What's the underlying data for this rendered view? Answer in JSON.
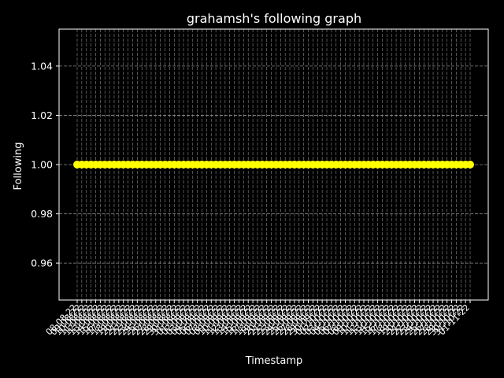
{
  "chart_data": {
    "type": "line",
    "title": "grahamsh's following graph",
    "xlabel": "Timestamp",
    "ylabel": "Following",
    "ylim": [
      0.945,
      1.055
    ],
    "yticks": [
      0.96,
      0.98,
      1.0,
      1.02,
      1.04
    ],
    "ytick_labels": [
      "0.96",
      "0.98",
      "1.00",
      "1.02",
      "1.04"
    ],
    "grid": true,
    "series": [
      {
        "name": "Following",
        "color": "#ffff00",
        "values": [
          1,
          1,
          1,
          1,
          1,
          1,
          1,
          1,
          1,
          1,
          1,
          1,
          1,
          1,
          1,
          1,
          1,
          1,
          1,
          1,
          1,
          1,
          1,
          1,
          1,
          1,
          1,
          1,
          1,
          1,
          1,
          1,
          1,
          1,
          1,
          1,
          1,
          1,
          1,
          1,
          1,
          1,
          1,
          1,
          1,
          1,
          1,
          1,
          1,
          1,
          1,
          1,
          1,
          1,
          1,
          1,
          1,
          1,
          1,
          1,
          1,
          1,
          1,
          1,
          1,
          1,
          1,
          1,
          1,
          1,
          1,
          1,
          1,
          1,
          1,
          1,
          1,
          1,
          1,
          1,
          1,
          1,
          1,
          1,
          1,
          1
        ]
      }
    ],
    "categories": [
      "08-08-22",
      "09-08-22",
      "10-08-22",
      "11-08-22",
      "12-08-22",
      "13-08-22",
      "14-08-22",
      "15-08-22",
      "16-08-22",
      "17-08-22",
      "18-08-22",
      "19-08-22",
      "20-08-22",
      "21-08-22",
      "22-08-22",
      "23-08-22",
      "24-08-22",
      "25-08-22",
      "26-08-22",
      "27-08-22",
      "28-08-22",
      "29-08-22",
      "30-08-22",
      "31-08-22",
      "01-09-22",
      "02-09-22",
      "03-09-22",
      "04-09-22",
      "05-09-22",
      "06-09-22",
      "07-09-22",
      "08-09-22",
      "09-09-22",
      "10-09-22",
      "11-09-22",
      "12-09-22",
      "13-09-22",
      "14-09-22",
      "15-09-22",
      "16-09-22",
      "17-09-22",
      "18-09-22",
      "19-09-22",
      "20-09-22",
      "21-09-22",
      "22-09-22",
      "23-09-22",
      "24-09-22",
      "25-09-22",
      "26-09-22",
      "27-09-22",
      "28-09-22",
      "29-09-22",
      "30-09-22",
      "01-10-22",
      "02-10-22",
      "03-10-22",
      "04-10-22",
      "05-10-22",
      "06-10-22",
      "07-10-22",
      "08-10-22",
      "09-10-22",
      "10-10-22",
      "11-10-22",
      "12-10-22",
      "13-10-22",
      "14-10-22",
      "15-10-22",
      "16-10-22",
      "17-10-22",
      "18-10-22",
      "19-10-22",
      "20-10-22",
      "21-10-22",
      "22-10-22",
      "23-10-22",
      "24-10-22",
      "25-10-22",
      "26-10-22",
      "27-10-22",
      "28-10-22",
      "29-10-22",
      "30-10-22",
      "31-10-22",
      "01-11-22"
    ]
  },
  "colors": {
    "background": "#000000",
    "axes": "#ffffff",
    "grid": "#8c8c8c",
    "line": "#ffff00"
  }
}
